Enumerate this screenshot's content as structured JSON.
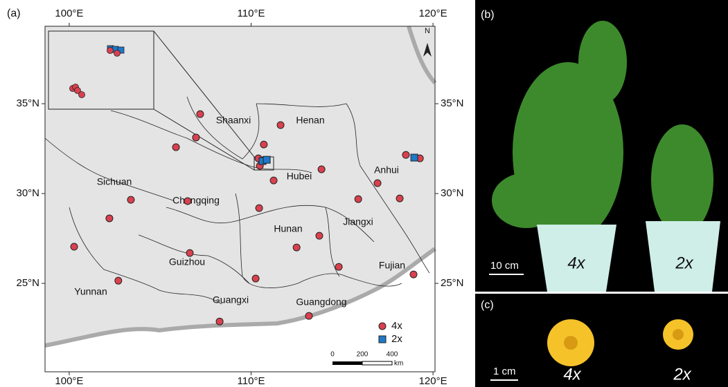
{
  "chart_data": {
    "type": "scatter",
    "xlim": [
      98.67,
      120.11
    ],
    "ylim": [
      20.08,
      39.31
    ],
    "xticks": [
      {
        "value": 100,
        "label": "100°E"
      },
      {
        "value": 110,
        "label": "110°E"
      },
      {
        "value": 120,
        "label": "120°E"
      }
    ],
    "yticks": [
      {
        "value": 35,
        "label": "35°N"
      },
      {
        "value": 30,
        "label": "30°N"
      },
      {
        "value": 25,
        "label": "25°N"
      }
    ],
    "series": [
      {
        "name": "4x",
        "color": "#d9414e",
        "marker": "circle",
        "x": [
          107.2,
          111.62,
          105.87,
          106.97,
          110.7,
          110.4,
          110.48,
          113.87,
          111.24,
          118.51,
          119.28,
          116.95,
          115.89,
          118.17,
          103.39,
          106.51,
          110.44,
          102.21,
          113.75,
          100.27,
          112.5,
          106.63,
          114.82,
          102.7,
          110.25,
          118.93,
          113.18,
          108.27
        ],
        "values": [
          34.42,
          33.81,
          32.58,
          33.12,
          32.73,
          31.96,
          31.54,
          31.35,
          30.73,
          32.15,
          31.96,
          30.58,
          29.69,
          29.73,
          29.65,
          29.58,
          29.19,
          28.62,
          27.65,
          27.04,
          27.0,
          26.69,
          25.92,
          25.15,
          25.27,
          25.5,
          23.19,
          22.88
        ]
      },
      {
        "name": "2x",
        "color": "#1f78c8",
        "marker": "square",
        "x": [
          110.63,
          110.86,
          118.97
        ],
        "values": [
          31.81,
          31.88,
          32.0
        ]
      }
    ],
    "annotations": [
      "Shaanxi",
      "Henan",
      "Hubei",
      "Anhui",
      "Sichuan",
      "Chongqing",
      "Jiangxi",
      "Hunan",
      "Guizhou",
      "Fujian",
      "Yunnan",
      "Guangxi",
      "Guangdong"
    ],
    "scale_bar": [
      "0",
      "200",
      "400",
      "km"
    ],
    "north": "N",
    "panel_label": "(a)"
  },
  "photos": {
    "b": {
      "panel_label": "(b)",
      "scale": "10 cm",
      "labels": [
        "4x",
        "2x"
      ]
    },
    "c": {
      "panel_label": "(c)",
      "scale": "1 cm",
      "labels": [
        "4x",
        "2x"
      ]
    }
  }
}
